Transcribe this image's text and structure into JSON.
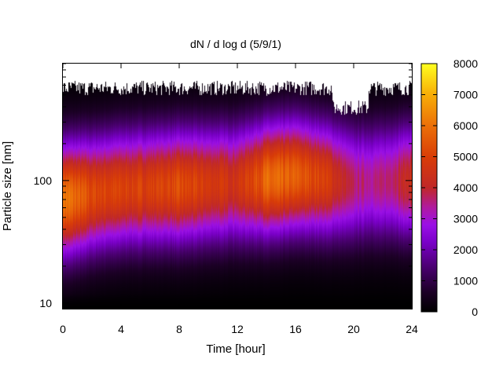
{
  "chart_data": {
    "type": "heatmap",
    "title": "dN / d log d (5/9/1)",
    "xlabel": "Time [hour]",
    "ylabel": "Particle size [nm]",
    "xlim": [
      0,
      24
    ],
    "ylim": [
      9,
      900
    ],
    "y_scale": "log",
    "x_ticks": [
      0,
      4,
      8,
      12,
      16,
      20,
      24
    ],
    "y_ticks": [
      10,
      100
    ],
    "colorbar": {
      "min": 0,
      "max": 8000,
      "ticks": [
        0,
        1000,
        2000,
        3000,
        4000,
        5000,
        6000,
        7000,
        8000
      ],
      "colormap": "gnuplot (black-purple-red-orange-yellow)"
    },
    "mode_diameter_nm_by_time": [
      {
        "t": 0,
        "d": 70
      },
      {
        "t": 4,
        "d": 85
      },
      {
        "t": 8,
        "d": 90
      },
      {
        "t": 12,
        "d": 95
      },
      {
        "t": 16,
        "d": 110
      },
      {
        "t": 20,
        "d": 95
      },
      {
        "t": 24,
        "d": 100
      }
    ],
    "peak_concentration_by_time": [
      {
        "t": 0,
        "v": 6200
      },
      {
        "t": 2,
        "v": 5200
      },
      {
        "t": 4,
        "v": 5000
      },
      {
        "t": 6,
        "v": 5000
      },
      {
        "t": 8,
        "v": 5200
      },
      {
        "t": 10,
        "v": 4800
      },
      {
        "t": 12,
        "v": 4600
      },
      {
        "t": 14,
        "v": 5800
      },
      {
        "t": 16,
        "v": 5600
      },
      {
        "t": 18,
        "v": 5000
      },
      {
        "t": 20,
        "v": 3600
      },
      {
        "t": 22,
        "v": 3500
      },
      {
        "t": 24,
        "v": 4400
      }
    ]
  },
  "colors": {
    "background": "#ffffff",
    "axis": "#000000"
  }
}
